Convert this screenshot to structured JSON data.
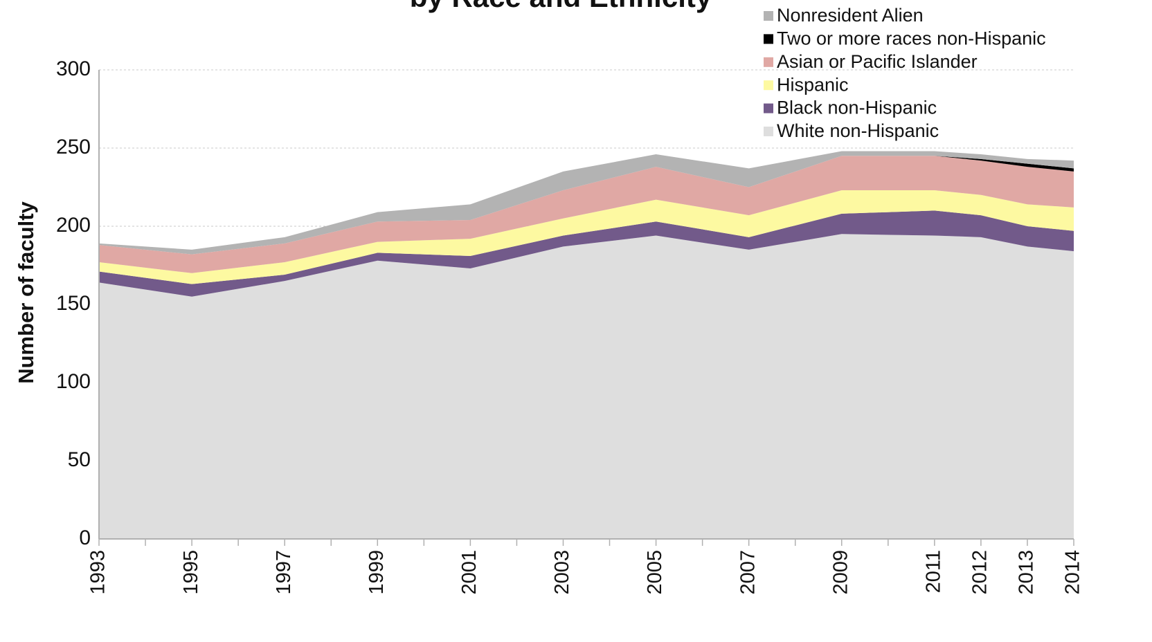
{
  "chart_data": {
    "type": "stacked-area",
    "title": "by Race and Ethnicity",
    "y_label": "Number of faculty",
    "x": [
      1993,
      1995,
      1997,
      1999,
      2001,
      2003,
      2005,
      2007,
      2009,
      2011,
      2012,
      2013,
      2014
    ],
    "xlim": [
      1993,
      2014
    ],
    "xticks": [
      1993,
      1995,
      1997,
      1999,
      2001,
      2003,
      2005,
      2007,
      2009,
      2011,
      2012,
      2013,
      2014
    ],
    "ylim": [
      0,
      300
    ],
    "yticks": [
      0,
      50,
      100,
      150,
      200,
      250,
      300
    ],
    "grid": true,
    "legend": "top-right",
    "series": [
      {
        "name": "White non-Hispanic",
        "color": "#dedede",
        "values": [
          164,
          155,
          165,
          178,
          173,
          187,
          194,
          185,
          195,
          194,
          193,
          187,
          184
        ]
      },
      {
        "name": "Black non-Hispanic",
        "color": "#725a8a",
        "values": [
          7,
          8,
          4,
          5,
          8,
          7,
          9,
          8,
          13,
          16,
          14,
          13,
          13
        ]
      },
      {
        "name": "Hispanic",
        "color": "#fdf9a1",
        "values": [
          6,
          7,
          8,
          7,
          11,
          11,
          14,
          14,
          15,
          13,
          13,
          14,
          15
        ]
      },
      {
        "name": "Asian or Pacific Islander",
        "color": "#e0a8a4",
        "values": [
          11,
          12,
          12,
          13,
          12,
          18,
          21,
          18,
          22,
          22,
          22,
          24,
          23
        ]
      },
      {
        "name": "Two or more races non-Hispanic",
        "color": "#000000",
        "values": [
          0,
          0,
          0,
          0,
          0,
          0,
          0,
          0,
          0,
          0,
          1,
          2,
          2
        ]
      },
      {
        "name": "Nonresident Alien",
        "color": "#b3b3b3",
        "values": [
          1,
          3,
          4,
          6,
          10,
          12,
          8,
          12,
          3,
          3,
          3,
          3,
          5
        ]
      }
    ]
  }
}
